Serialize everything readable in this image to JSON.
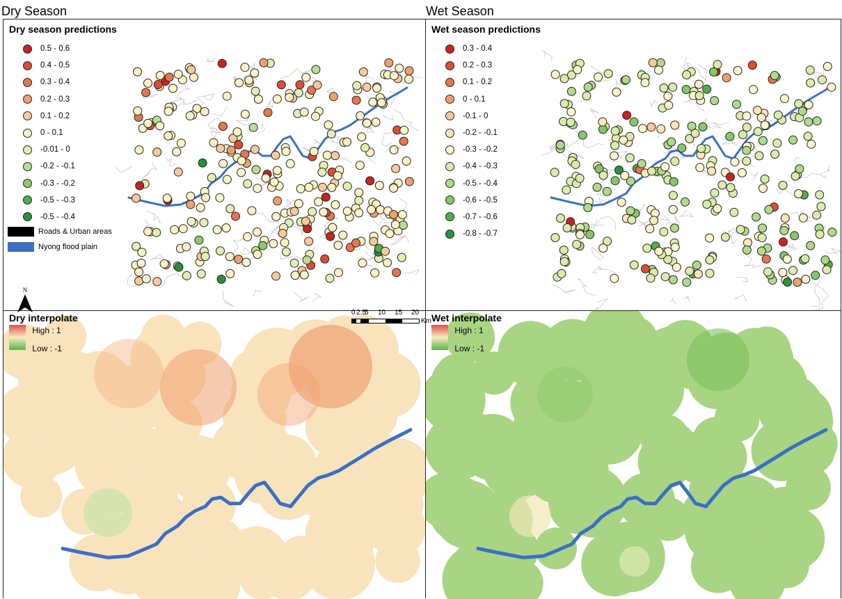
{
  "columns": {
    "left": "Dry Season",
    "right": "Wet Season"
  },
  "dry_predictions": {
    "title": "Dry season predictions",
    "classes": [
      {
        "label": "0.5 - 0.6",
        "color": "#c8231f"
      },
      {
        "label": "0.4 - 0.5",
        "color": "#dc4e34"
      },
      {
        "label": "0.3 - 0.4",
        "color": "#e6764e"
      },
      {
        "label": "0.2 - 0.3",
        "color": "#f0a06f"
      },
      {
        "label": "0.1 - 0.2",
        "color": "#f8c99a"
      },
      {
        "label": "0 - 0.1",
        "color": "#fdf3c6"
      },
      {
        "label": "-0.01 - 0",
        "color": "#e2efb4"
      },
      {
        "label": "-0.2 - -0.1",
        "color": "#b9dd92"
      },
      {
        "label": "-0.3 - -0.2",
        "color": "#8ccb6c"
      },
      {
        "label": "-0.5 - -0.3",
        "color": "#4fae4b"
      },
      {
        "label": "-0.5 - -0.4",
        "color": "#26903c"
      }
    ],
    "roads_label": "Roads & Urban areas",
    "floodplain_label": "Nyong flood plain",
    "north_label": "N",
    "scale": {
      "ticks": [
        "0",
        "2.5",
        "5",
        "10",
        "15",
        "20"
      ],
      "unit": "Km"
    }
  },
  "wet_predictions": {
    "title": "Wet season predictions",
    "classes": [
      {
        "label": "0.3 - 0.4",
        "color": "#c8231f"
      },
      {
        "label": "0.2 - 0.3",
        "color": "#dc4e34"
      },
      {
        "label": "0.1 - 0.2",
        "color": "#e6764e"
      },
      {
        "label": "0 - 0.1",
        "color": "#f0a06f"
      },
      {
        "label": "-0.1 - 0",
        "color": "#f8c99a"
      },
      {
        "label": "-0.2 - -0.1",
        "color": "#fde7b5"
      },
      {
        "label": "-0.3 - -0.2",
        "color": "#fdf5cc"
      },
      {
        "label": "-0.4 - -0.3",
        "color": "#d9ecab"
      },
      {
        "label": "-0.5 - -0.4",
        "color": "#b0d98a"
      },
      {
        "label": "-0.6 - -0.5",
        "color": "#86c76a"
      },
      {
        "label": "-0.7 - -0.6",
        "color": "#54ad4c"
      },
      {
        "label": "-0.8 - -0.7",
        "color": "#2a903e"
      }
    ]
  },
  "dry_interpolate": {
    "title": "Dry interpolate",
    "high_label": "High : 1",
    "low_label": "Low : -1"
  },
  "wet_interpolate": {
    "title": "Wet interpolate",
    "high_label": "High : 1",
    "low_label": "Low : -1"
  },
  "colors": {
    "river": "#3b6fc4",
    "roads": "#000000",
    "road_lines": "#bdbdbd",
    "dry_surface": "#f9e3bd",
    "wet_surface": "#a9d483"
  }
}
